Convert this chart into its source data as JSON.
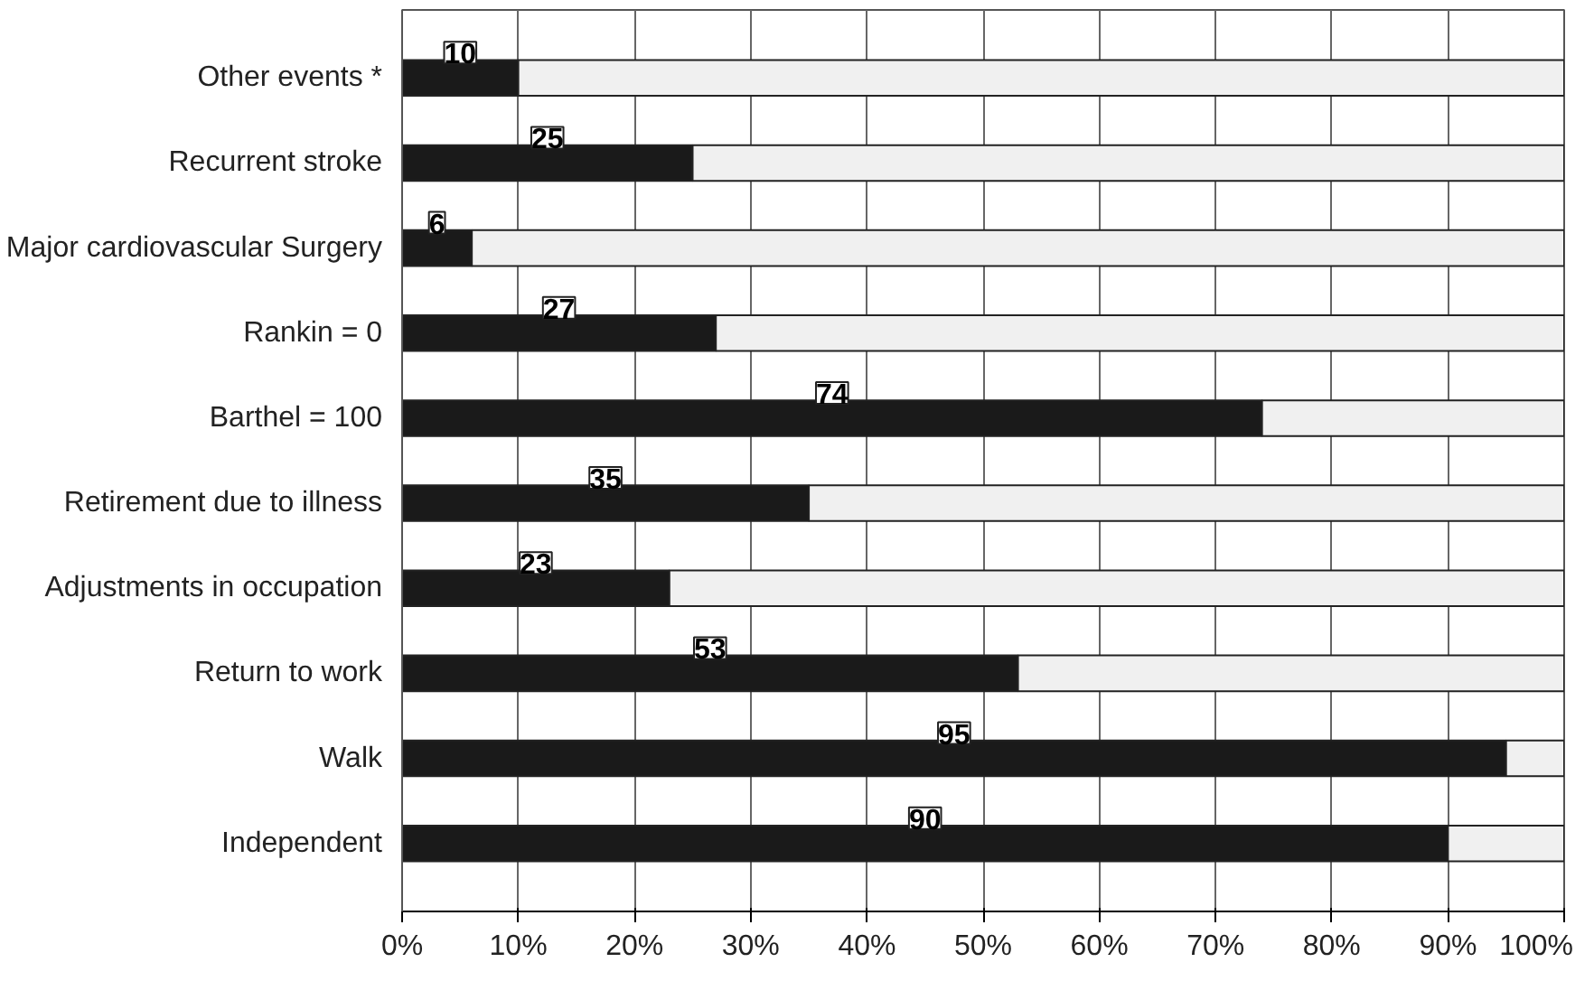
{
  "chart_data": {
    "type": "bar",
    "orientation": "horizontal",
    "stacked": true,
    "grid": "x",
    "categories": [
      "Other events *",
      "Recurrent stroke",
      "Major cardiovascular Surgery",
      "Rankin = 0",
      "Barthel = 100",
      "Retirement due to illness",
      "Adjustments in occupation",
      "Return to work",
      "Walk",
      "Independent"
    ],
    "series": [
      {
        "color": "#1a1a1a",
        "values": [
          10,
          25,
          6,
          27,
          74,
          35,
          23,
          53,
          95,
          90
        ],
        "value_labels": [
          "10",
          "25",
          "6",
          "27",
          "74",
          "35",
          "23",
          "53",
          "95",
          "90"
        ]
      },
      {
        "color": "#f0f0f0",
        "values": [
          90,
          75,
          94,
          73,
          26,
          65,
          77,
          47,
          5,
          10
        ]
      }
    ],
    "xlim": [
      0,
      100
    ],
    "xticks": [
      {
        "value": 0,
        "label": "0%"
      },
      {
        "value": 10,
        "label": "10%"
      },
      {
        "value": 20,
        "label": "20%"
      },
      {
        "value": 30,
        "label": "30%"
      },
      {
        "value": 40,
        "label": "40%"
      },
      {
        "value": 50,
        "label": "50%"
      },
      {
        "value": 60,
        "label": "60%"
      },
      {
        "value": 70,
        "label": "70%"
      },
      {
        "value": 80,
        "label": "80%"
      },
      {
        "value": 90,
        "label": "90%"
      },
      {
        "value": 100,
        "label": "100%"
      }
    ]
  }
}
